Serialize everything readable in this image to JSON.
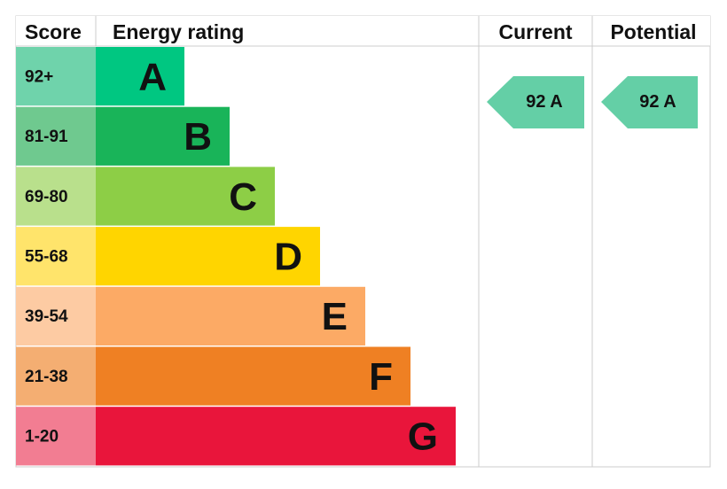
{
  "header": {
    "score": "Score",
    "energy_rating": "Energy rating",
    "current": "Current",
    "potential": "Potential"
  },
  "rows": [
    {
      "score": "92+",
      "rating": "A"
    },
    {
      "score": "81-91",
      "rating": "B"
    },
    {
      "score": "69-80",
      "rating": "C"
    },
    {
      "score": "55-68",
      "rating": "D"
    },
    {
      "score": "39-54",
      "rating": "E"
    },
    {
      "score": "21-38",
      "rating": "F"
    },
    {
      "score": "1-20",
      "rating": "G"
    }
  ],
  "current": "92 A",
  "potential": "92 A"
}
